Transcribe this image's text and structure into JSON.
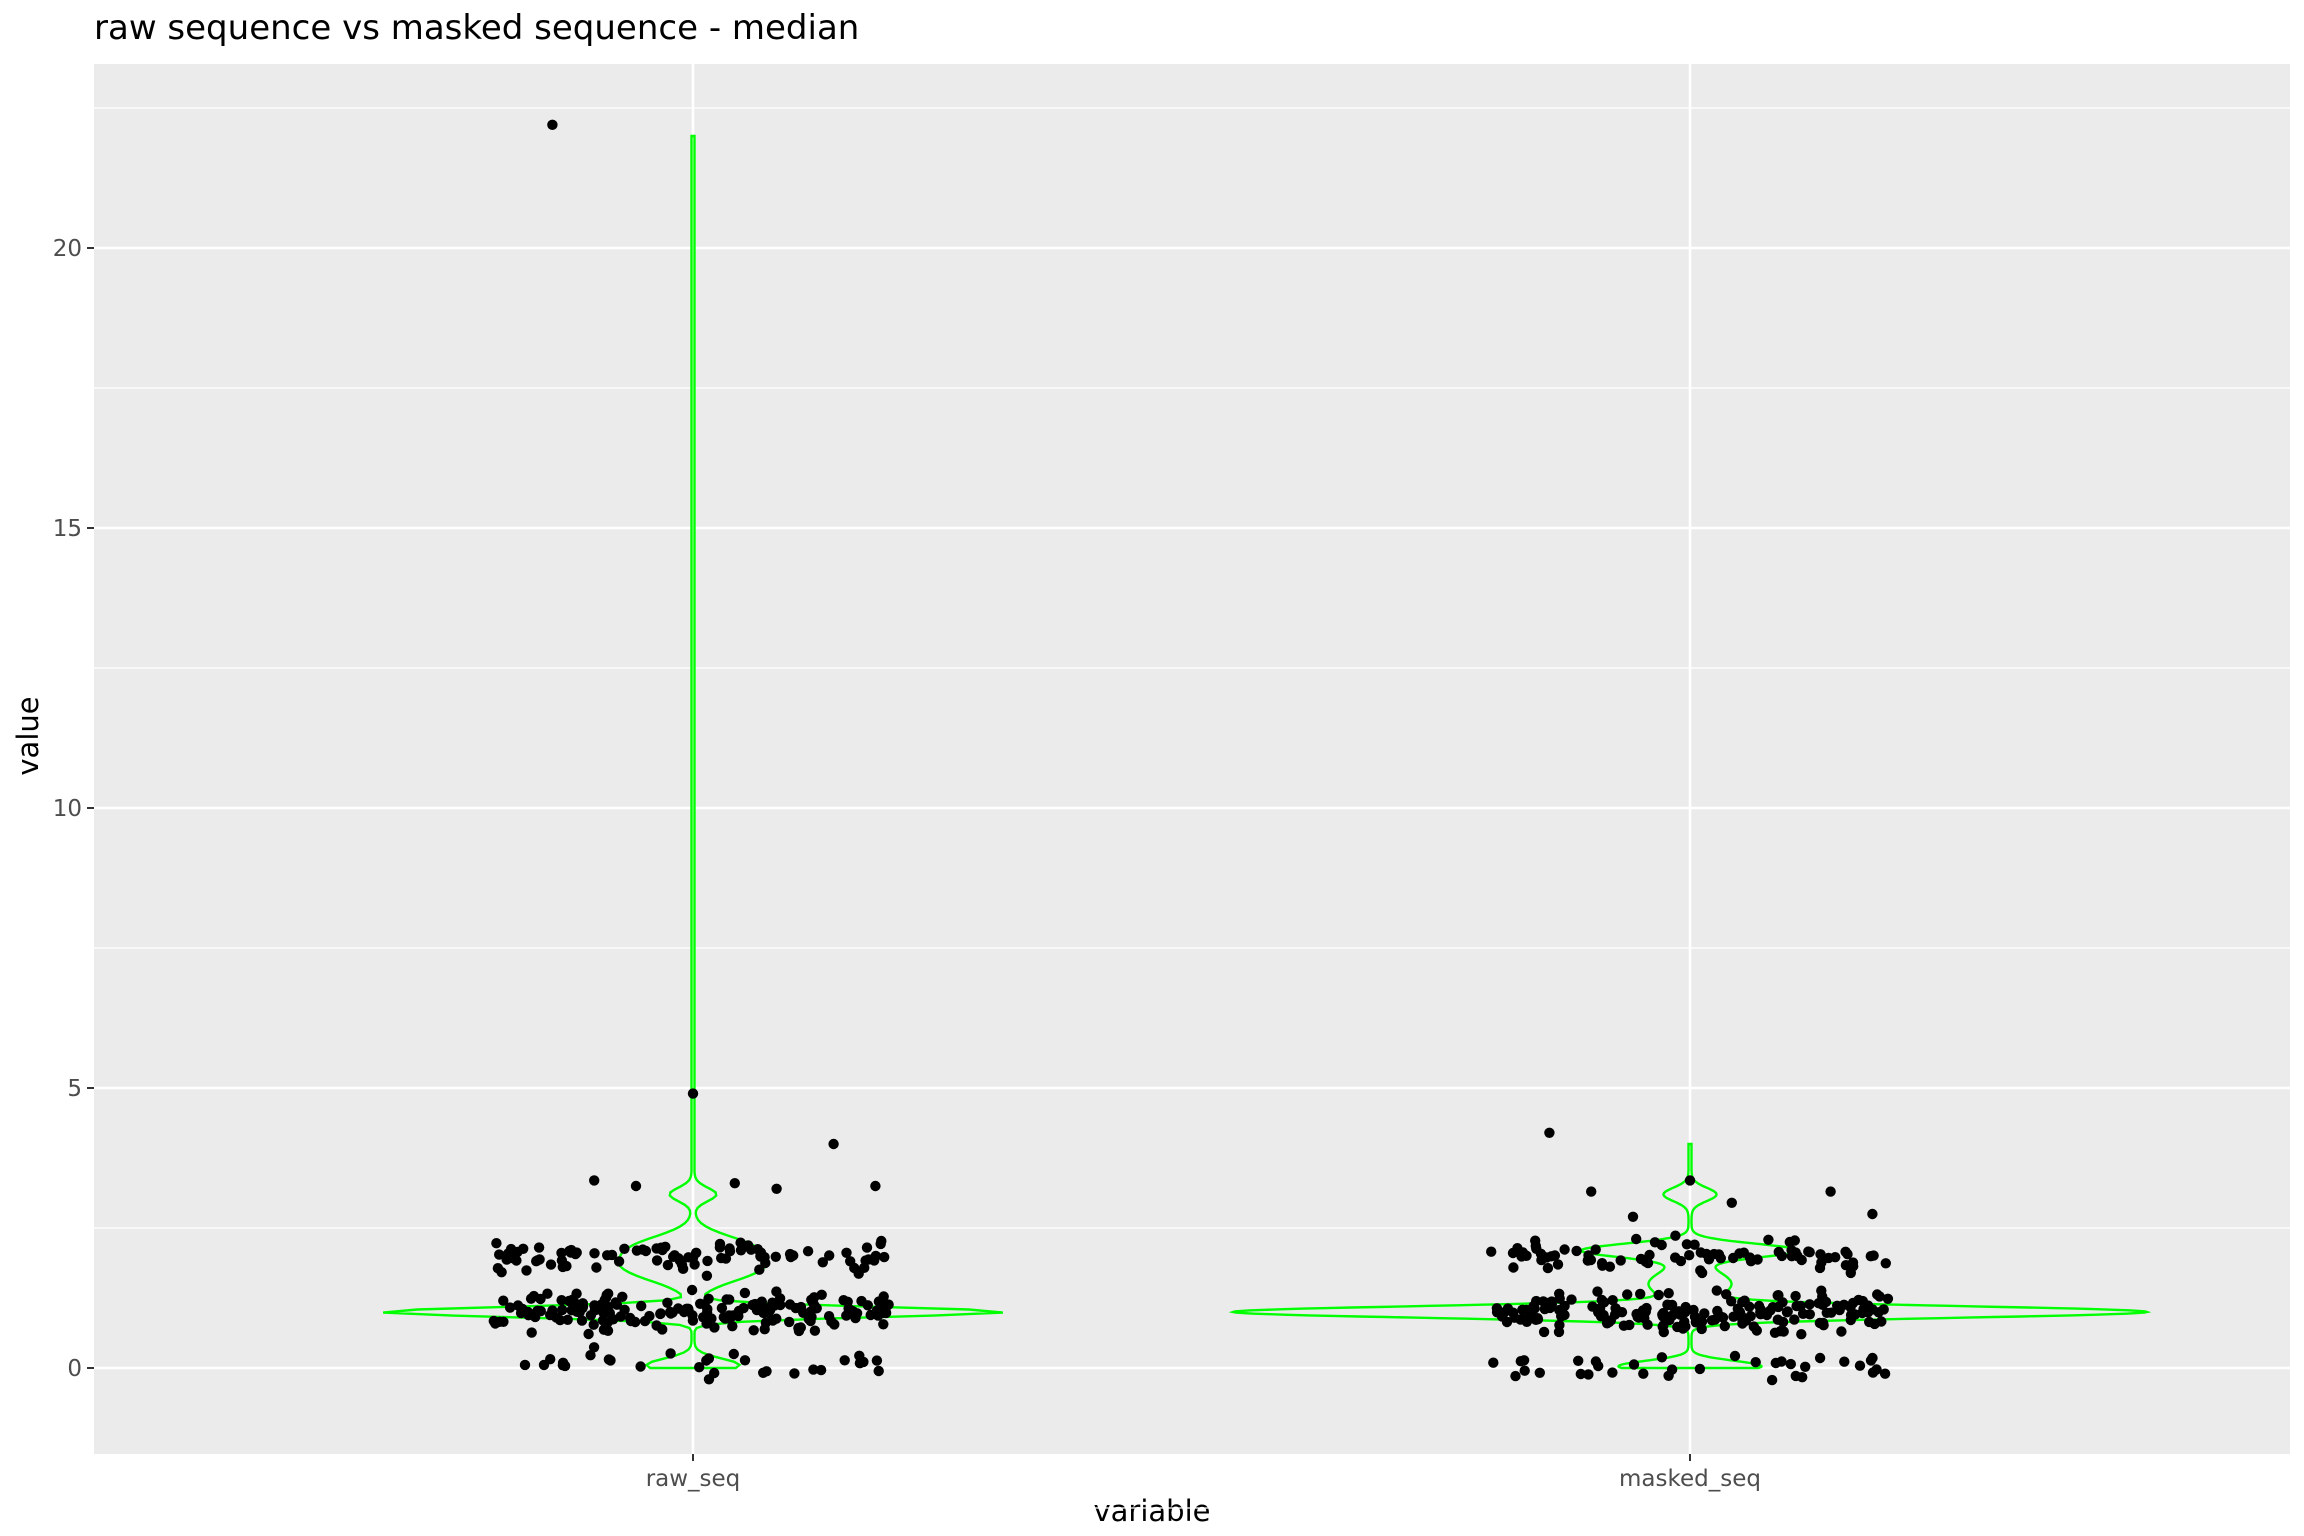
{
  "chart_data": {
    "type": "violin",
    "title": "raw sequence vs masked sequence - median",
    "xlabel": "variable",
    "ylabel": "value",
    "categories": [
      "raw_seq",
      "masked_seq"
    ],
    "ylim": [
      -1.5,
      23.0
    ],
    "y_ticks": [
      0,
      5,
      10,
      15,
      20
    ],
    "y_tick_labels": [
      "0",
      "5",
      "10",
      "15",
      "20"
    ],
    "grid": true,
    "panel_background": "#ebebeb",
    "violin_color": "#00ff00",
    "point_color": "#000000",
    "series": [
      {
        "category": "raw_seq",
        "violin_range": [
          0,
          22.0
        ],
        "outliers": [
          22.2,
          4.9,
          4.0,
          3.35,
          3.3,
          3.25,
          3.25,
          3.2
        ],
        "clusters": [
          {
            "y_center": 1.0,
            "spread": 0.35,
            "n": 180
          },
          {
            "y_center": 2.0,
            "spread": 0.3,
            "n": 90
          },
          {
            "y_center": 0.1,
            "spread": 0.25,
            "n": 30
          }
        ]
      },
      {
        "category": "masked_seq",
        "violin_range": [
          0,
          4.0
        ],
        "outliers": [
          4.2,
          3.35,
          3.15,
          3.15,
          2.95,
          2.75,
          2.7
        ],
        "clusters": [
          {
            "y_center": 1.0,
            "spread": 0.35,
            "n": 180
          },
          {
            "y_center": 2.0,
            "spread": 0.3,
            "n": 80
          },
          {
            "y_center": 0.0,
            "spread": 0.25,
            "n": 35
          }
        ]
      }
    ]
  }
}
